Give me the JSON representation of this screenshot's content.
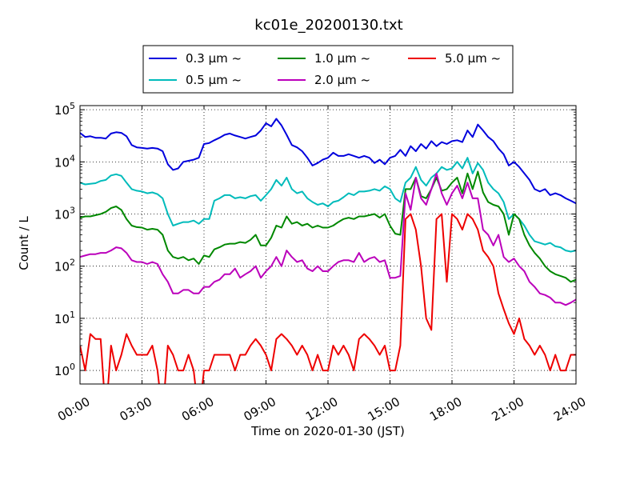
{
  "chart_data": {
    "type": "line",
    "title": "kc01e_20200130.txt",
    "xlabel": "Time on 2020-01-30 (JST)",
    "ylabel": "Count / L",
    "y_scale": "log",
    "ylim": [
      0.55,
      120000
    ],
    "xlim": [
      "00:00",
      "24:00"
    ],
    "x_ticks": [
      "00:00",
      "03:00",
      "06:00",
      "09:00",
      "12:00",
      "15:00",
      "18:00",
      "21:00",
      "24:00"
    ],
    "y_ticks": [
      1,
      10,
      100,
      1000,
      10000,
      100000
    ],
    "y_tick_labels": [
      {
        "base": "10",
        "exp": "0"
      },
      {
        "base": "10",
        "exp": "1"
      },
      {
        "base": "10",
        "exp": "2"
      },
      {
        "base": "10",
        "exp": "3"
      },
      {
        "base": "10",
        "exp": "4"
      },
      {
        "base": "10",
        "exp": "5"
      }
    ],
    "grid": true,
    "legend_position": "above plot, centered",
    "series": [
      {
        "name": "0.3 µm ~",
        "color": "#0000dd",
        "x": [
          0,
          0.25,
          0.5,
          0.75,
          1,
          1.25,
          1.5,
          1.75,
          2,
          2.25,
          2.5,
          2.75,
          3,
          3.25,
          3.5,
          3.75,
          4,
          4.25,
          4.5,
          4.75,
          5,
          5.25,
          5.5,
          5.75,
          6,
          6.25,
          6.5,
          6.75,
          7,
          7.25,
          7.5,
          7.75,
          8,
          8.25,
          8.5,
          8.75,
          9,
          9.25,
          9.5,
          9.75,
          10,
          10.25,
          10.5,
          10.75,
          11,
          11.25,
          11.5,
          11.75,
          12,
          12.25,
          12.5,
          12.75,
          13,
          13.25,
          13.5,
          13.75,
          14,
          14.25,
          14.5,
          14.75,
          15,
          15.25,
          15.5,
          15.75,
          16,
          16.25,
          16.5,
          16.75,
          17,
          17.25,
          17.5,
          17.75,
          18,
          18.25,
          18.5,
          18.75,
          19,
          19.25,
          19.5,
          19.75,
          20,
          20.25,
          20.5,
          20.75,
          21,
          21.25,
          21.5,
          21.75,
          22,
          22.25,
          22.5,
          22.75,
          23,
          23.25,
          23.5,
          23.75,
          24
        ],
        "y": [
          36000,
          30000,
          31000,
          29000,
          29000,
          28000,
          35000,
          37000,
          36000,
          31000,
          21000,
          19000,
          18500,
          18000,
          18500,
          18000,
          16000,
          9000,
          7000,
          7500,
          10000,
          10500,
          11000,
          12000,
          22000,
          23000,
          26000,
          29000,
          33000,
          35000,
          32000,
          30000,
          28000,
          30000,
          32000,
          40000,
          55000,
          48000,
          67000,
          50000,
          33000,
          21000,
          19000,
          16000,
          12000,
          8500,
          9500,
          11000,
          12000,
          15000,
          13000,
          13000,
          14000,
          13000,
          12000,
          13000,
          12000,
          9500,
          11000,
          9000,
          12000,
          13000,
          17000,
          13000,
          20000,
          16000,
          22000,
          18000,
          25000,
          20000,
          24000,
          22000,
          25000,
          26000,
          24000,
          40000,
          30000,
          52000,
          40000,
          30000,
          25000,
          18000,
          14000,
          8500,
          10000,
          8000,
          6000,
          4500,
          3000,
          2700,
          3000,
          2300,
          2500,
          2300,
          2000,
          1800,
          1600
        ]
      },
      {
        "name": "0.5 µm ~",
        "color": "#00bbbb",
        "x": [
          0,
          0.25,
          0.5,
          0.75,
          1,
          1.25,
          1.5,
          1.75,
          2,
          2.25,
          2.5,
          2.75,
          3,
          3.25,
          3.5,
          3.75,
          4,
          4.25,
          4.5,
          4.75,
          5,
          5.25,
          5.5,
          5.75,
          6,
          6.25,
          6.5,
          6.75,
          7,
          7.25,
          7.5,
          7.75,
          8,
          8.25,
          8.5,
          8.75,
          9,
          9.25,
          9.5,
          9.75,
          10,
          10.25,
          10.5,
          10.75,
          11,
          11.25,
          11.5,
          11.75,
          12,
          12.25,
          12.5,
          12.75,
          13,
          13.25,
          13.5,
          13.75,
          14,
          14.25,
          14.5,
          14.75,
          15,
          15.25,
          15.5,
          15.75,
          16,
          16.25,
          16.5,
          16.75,
          17,
          17.25,
          17.5,
          17.75,
          18,
          18.25,
          18.5,
          18.75,
          19,
          19.25,
          19.5,
          19.75,
          20,
          20.25,
          20.5,
          20.75,
          21,
          21.25,
          21.5,
          21.75,
          22,
          22.25,
          22.5,
          22.75,
          23,
          23.25,
          23.5,
          23.75,
          24
        ],
        "y": [
          4000,
          3700,
          3800,
          3900,
          4300,
          4500,
          5500,
          5800,
          5400,
          4000,
          3000,
          2800,
          2700,
          2500,
          2600,
          2400,
          2000,
          1000,
          600,
          650,
          700,
          700,
          750,
          650,
          800,
          800,
          1800,
          2000,
          2300,
          2300,
          2000,
          2100,
          2000,
          2200,
          2300,
          1800,
          2300,
          3000,
          4500,
          3500,
          5000,
          3000,
          2500,
          2700,
          2000,
          1700,
          1500,
          1600,
          1400,
          1700,
          1800,
          2100,
          2500,
          2300,
          2700,
          2700,
          2800,
          3000,
          2800,
          3400,
          3000,
          2000,
          1700,
          4000,
          5000,
          8000,
          4500,
          3500,
          5000,
          6000,
          8000,
          7000,
          7500,
          10000,
          7500,
          12000,
          6000,
          9500,
          7000,
          4000,
          3000,
          2500,
          1700,
          800,
          1000,
          800,
          600,
          400,
          300,
          280,
          260,
          280,
          240,
          230,
          200,
          190,
          200
        ]
      },
      {
        "name": "1.0 µm ~",
        "color": "#008800",
        "x": [
          0,
          0.25,
          0.5,
          0.75,
          1,
          1.25,
          1.5,
          1.75,
          2,
          2.25,
          2.5,
          2.75,
          3,
          3.25,
          3.5,
          3.75,
          4,
          4.25,
          4.5,
          4.75,
          5,
          5.25,
          5.5,
          5.75,
          6,
          6.25,
          6.5,
          6.75,
          7,
          7.25,
          7.5,
          7.75,
          8,
          8.25,
          8.5,
          8.75,
          9,
          9.25,
          9.5,
          9.75,
          10,
          10.25,
          10.5,
          10.75,
          11,
          11.25,
          11.5,
          11.75,
          12,
          12.25,
          12.5,
          12.75,
          13,
          13.25,
          13.5,
          13.75,
          14,
          14.25,
          14.5,
          14.75,
          15,
          15.25,
          15.5,
          15.75,
          16,
          16.25,
          16.5,
          16.75,
          17,
          17.25,
          17.5,
          17.75,
          18,
          18.25,
          18.5,
          18.75,
          19,
          19.25,
          19.5,
          19.75,
          20,
          20.25,
          20.5,
          20.75,
          21,
          21.25,
          21.5,
          21.75,
          22,
          22.25,
          22.5,
          22.75,
          23,
          23.25,
          23.5,
          23.75,
          24
        ],
        "y": [
          850,
          900,
          900,
          950,
          1000,
          1100,
          1300,
          1400,
          1200,
          800,
          600,
          560,
          550,
          500,
          520,
          500,
          400,
          200,
          150,
          140,
          150,
          130,
          140,
          110,
          160,
          150,
          210,
          230,
          260,
          270,
          270,
          290,
          280,
          320,
          400,
          250,
          250,
          350,
          600,
          550,
          900,
          650,
          700,
          600,
          650,
          550,
          600,
          550,
          550,
          600,
          700,
          800,
          850,
          800,
          900,
          900,
          950,
          1000,
          850,
          1000,
          600,
          420,
          400,
          3000,
          3000,
          5000,
          2200,
          2000,
          3000,
          5000,
          2800,
          3000,
          4000,
          5000,
          2500,
          6000,
          3000,
          6500,
          2600,
          1700,
          1500,
          1400,
          1000,
          400,
          1000,
          800,
          400,
          250,
          180,
          140,
          100,
          80,
          70,
          65,
          60,
          50,
          55
        ]
      },
      {
        "name": "2.0 µm ~",
        "color": "#bb00bb",
        "x": [
          0,
          0.25,
          0.5,
          0.75,
          1,
          1.25,
          1.5,
          1.75,
          2,
          2.25,
          2.5,
          2.75,
          3,
          3.25,
          3.5,
          3.75,
          4,
          4.25,
          4.5,
          4.75,
          5,
          5.25,
          5.5,
          5.75,
          6,
          6.25,
          6.5,
          6.75,
          7,
          7.25,
          7.5,
          7.75,
          8,
          8.25,
          8.5,
          8.75,
          9,
          9.25,
          9.5,
          9.75,
          10,
          10.25,
          10.5,
          10.75,
          11,
          11.25,
          11.5,
          11.75,
          12,
          12.25,
          12.5,
          12.75,
          13,
          13.25,
          13.5,
          13.75,
          14,
          14.25,
          14.5,
          14.75,
          15,
          15.25,
          15.5,
          15.75,
          16,
          16.25,
          16.5,
          16.75,
          17,
          17.25,
          17.5,
          17.75,
          18,
          18.25,
          18.5,
          18.75,
          19,
          19.25,
          19.5,
          19.75,
          20,
          20.25,
          20.5,
          20.75,
          21,
          21.25,
          21.5,
          21.75,
          22,
          22.25,
          22.5,
          22.75,
          23,
          23.25,
          23.5,
          23.75,
          24
        ],
        "y": [
          150,
          160,
          170,
          170,
          180,
          180,
          200,
          230,
          220,
          180,
          130,
          120,
          120,
          110,
          120,
          110,
          70,
          50,
          30,
          30,
          35,
          35,
          30,
          30,
          40,
          40,
          50,
          55,
          70,
          70,
          90,
          60,
          70,
          80,
          100,
          60,
          80,
          100,
          150,
          100,
          200,
          150,
          120,
          130,
          90,
          80,
          100,
          80,
          80,
          100,
          120,
          130,
          130,
          120,
          180,
          120,
          140,
          150,
          120,
          130,
          60,
          60,
          65,
          2500,
          1200,
          5000,
          2000,
          1500,
          3000,
          6000,
          2500,
          1500,
          2500,
          3500,
          2000,
          4000,
          2000,
          2000,
          500,
          400,
          250,
          400,
          150,
          120,
          140,
          100,
          80,
          50,
          40,
          30,
          28,
          25,
          20,
          20,
          18,
          20,
          23
        ]
      },
      {
        "name": "5.0 µm ~",
        "color": "#ee0000",
        "x": [
          0,
          0.25,
          0.5,
          0.75,
          1,
          1.25,
          1.5,
          1.75,
          2,
          2.25,
          2.5,
          2.75,
          3,
          3.25,
          3.5,
          3.75,
          4,
          4.25,
          4.5,
          4.75,
          5,
          5.25,
          5.5,
          5.75,
          6,
          6.25,
          6.5,
          6.75,
          7,
          7.25,
          7.5,
          7.75,
          8,
          8.25,
          8.5,
          8.75,
          9,
          9.25,
          9.5,
          9.75,
          10,
          10.25,
          10.5,
          10.75,
          11,
          11.25,
          11.5,
          11.75,
          12,
          12.25,
          12.5,
          12.75,
          13,
          13.25,
          13.5,
          13.75,
          14,
          14.25,
          14.5,
          14.75,
          15,
          15.25,
          15.5,
          15.75,
          16,
          16.25,
          16.5,
          16.75,
          17,
          17.25,
          17.5,
          17.75,
          18,
          18.25,
          18.5,
          18.75,
          19,
          19.25,
          19.5,
          19.75,
          20,
          20.25,
          20.5,
          20.75,
          21,
          21.25,
          21.5,
          21.75,
          22,
          22.25,
          22.5,
          22.75,
          23,
          23.25,
          23.5,
          23.75,
          24
        ],
        "y": [
          3,
          1,
          5,
          4,
          4,
          0,
          3,
          1,
          2,
          5,
          3,
          2,
          2,
          2,
          3,
          1,
          0,
          3,
          2,
          1,
          1,
          2,
          1,
          0,
          1,
          1,
          2,
          2,
          2,
          2,
          1,
          2,
          2,
          3,
          4,
          3,
          2,
          1,
          4,
          5,
          4,
          3,
          2,
          3,
          2,
          1,
          2,
          1,
          1,
          3,
          2,
          3,
          2,
          1,
          4,
          5,
          4,
          3,
          2,
          3,
          1,
          1,
          3,
          800,
          1000,
          500,
          100,
          10,
          6,
          800,
          1000,
          50,
          1000,
          800,
          500,
          1000,
          800,
          500,
          200,
          150,
          100,
          30,
          15,
          8,
          5,
          10,
          4,
          3,
          2,
          3,
          2,
          1,
          2,
          1,
          1,
          2,
          2
        ]
      }
    ]
  }
}
